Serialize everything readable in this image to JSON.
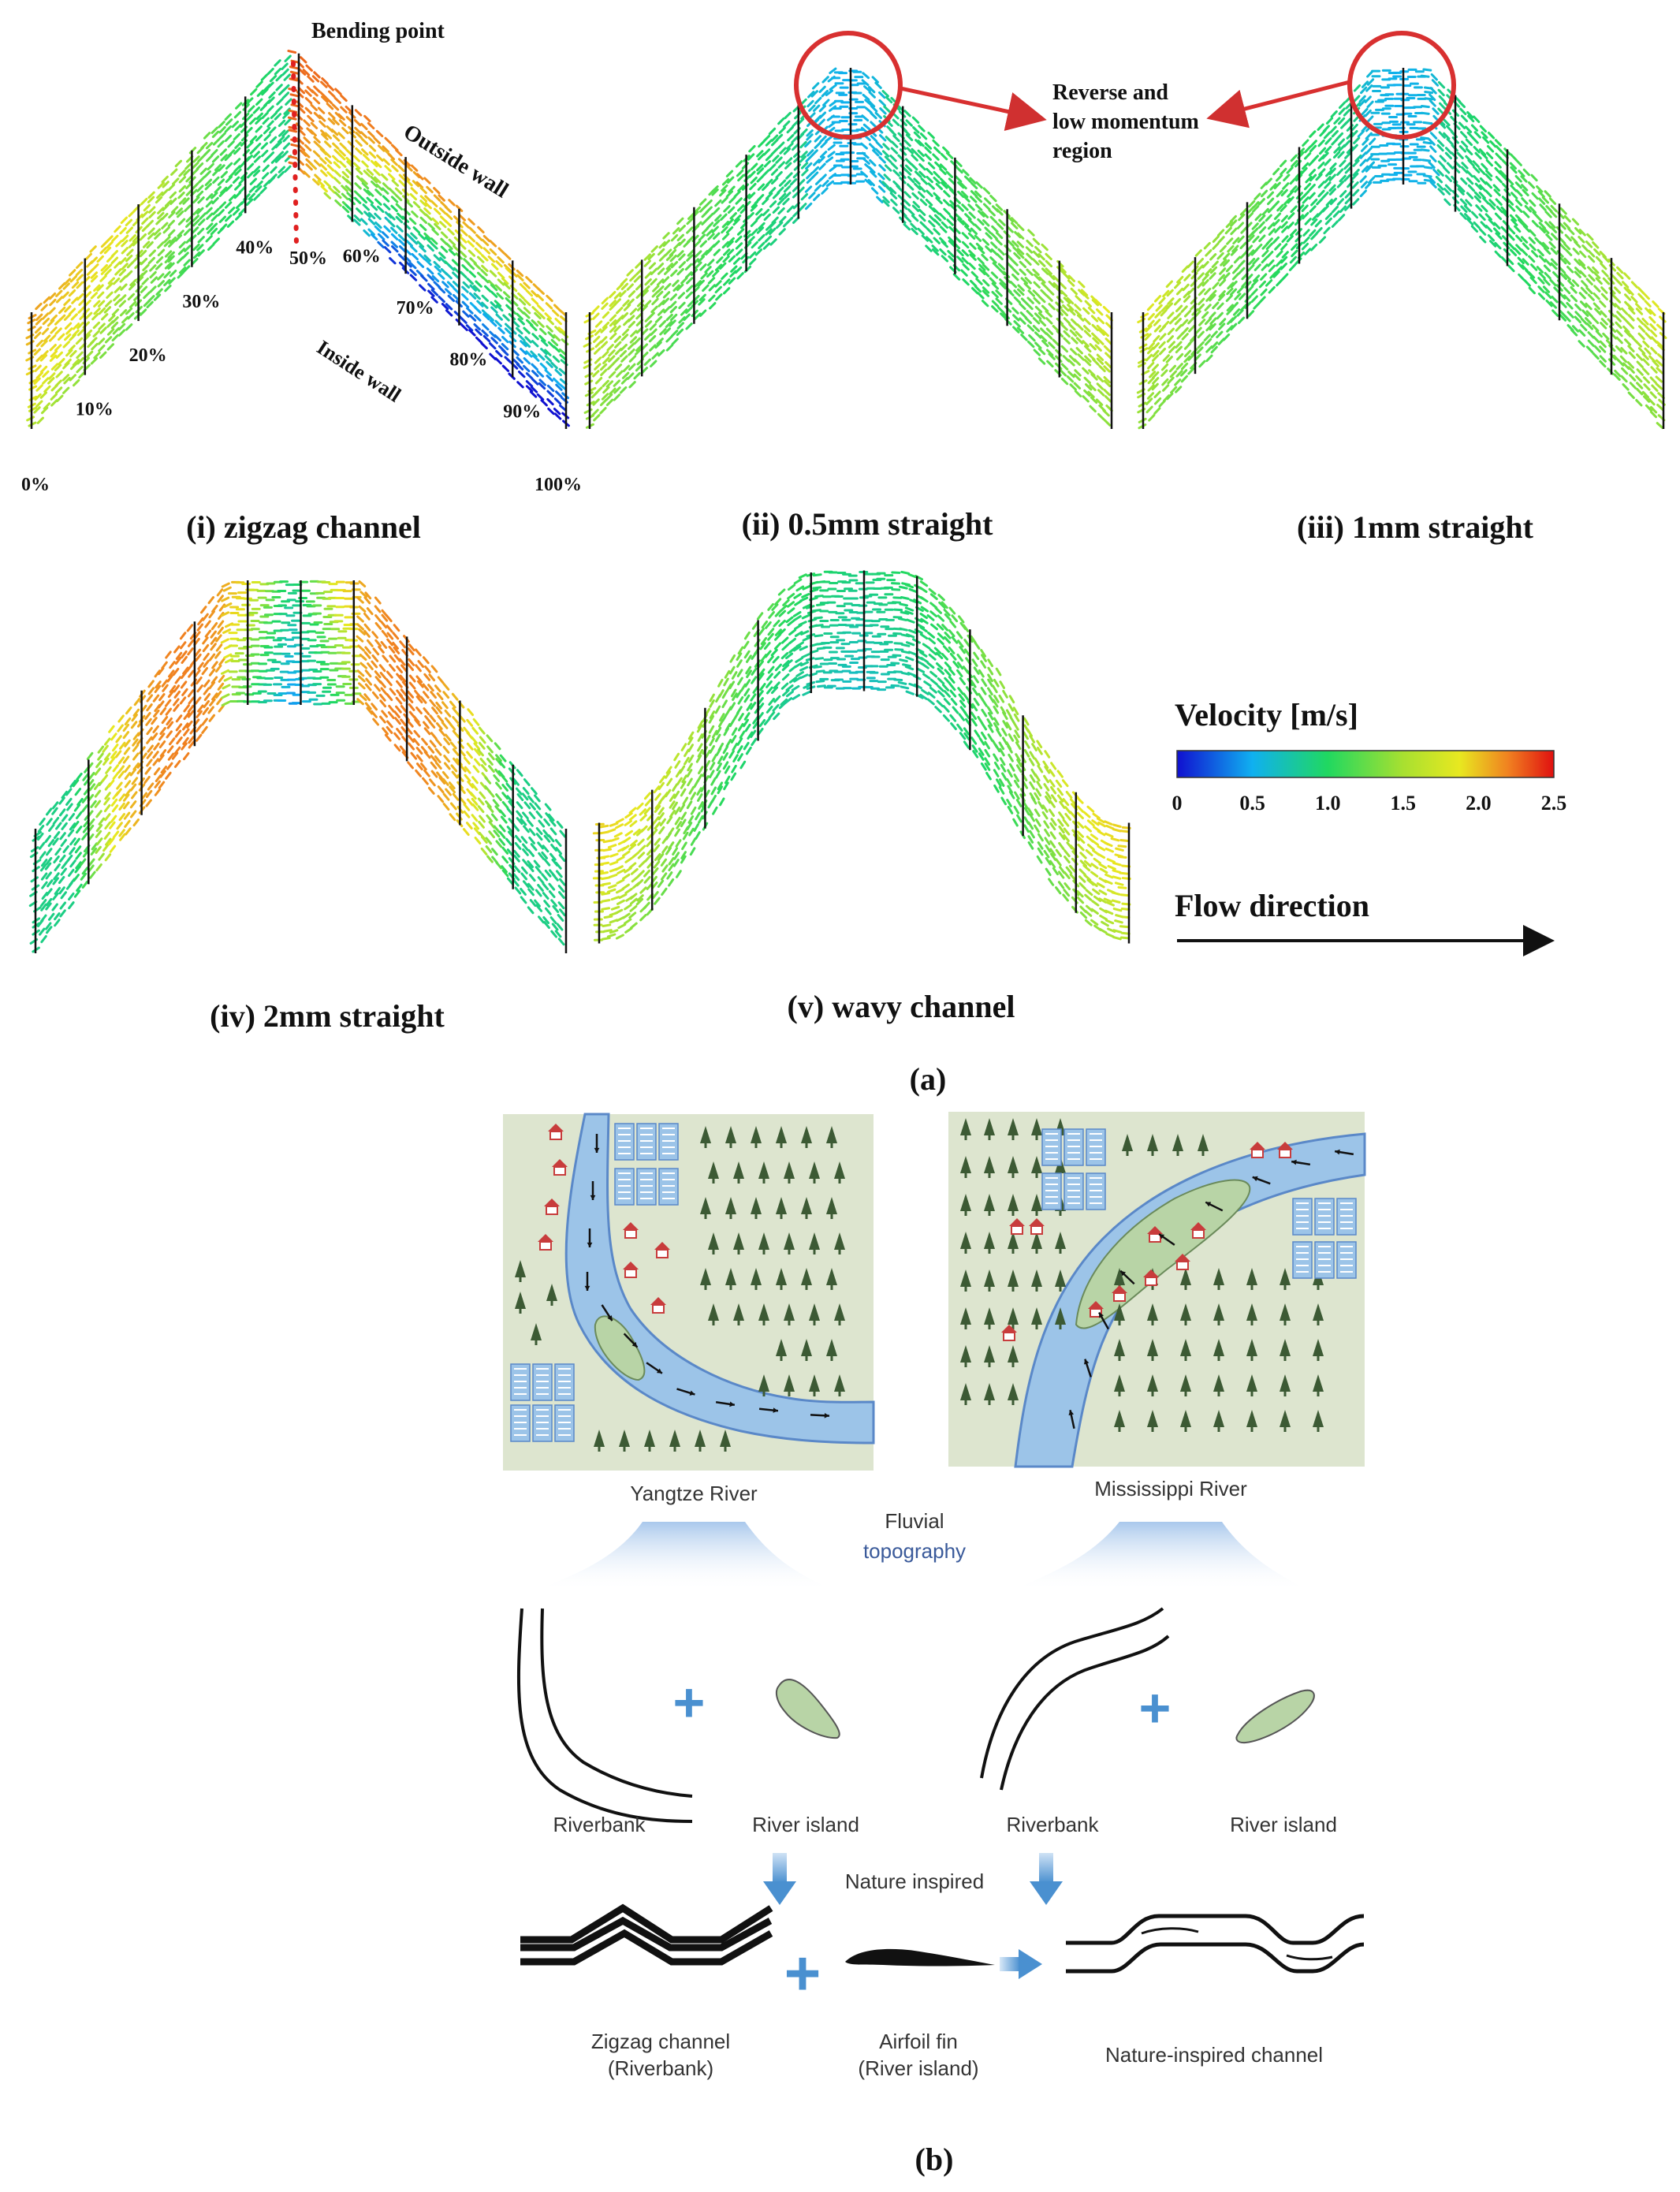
{
  "part_a": {
    "panels": [
      {
        "id": "zigzag",
        "caption": "(i)  zigzag channel"
      },
      {
        "id": "s05",
        "caption": "(ii)  0.5mm straight"
      },
      {
        "id": "s1",
        "caption": "(iii)  1mm straight"
      },
      {
        "id": "s2",
        "caption": "(iv)  2mm straight"
      },
      {
        "id": "wavy",
        "caption": "(v)  wavy channel"
      }
    ],
    "annotations": {
      "bending_point": "Bending point",
      "outside_wall": "Outside wall",
      "inside_wall": "Inside wall",
      "reverse_region": "Reverse and low momentum region"
    },
    "percent_labels": [
      "0%",
      "10%",
      "20%",
      "30%",
      "40%",
      "50%",
      "60%",
      "70%",
      "80%",
      "90%",
      "100%"
    ],
    "colorbar": {
      "title": "Velocity [m/s]",
      "ticks": [
        "0",
        "0.5",
        "1.0",
        "1.5",
        "2.0",
        "2.5"
      ],
      "min": 0,
      "max": 2.5,
      "colors": [
        "#1010d0",
        "#10b0f0",
        "#20d860",
        "#e8e820",
        "#f08020",
        "#e01010"
      ]
    },
    "flow_direction": "Flow direction",
    "part_label": "(a)"
  },
  "part_b": {
    "rivers": [
      {
        "name": "Yangtze River"
      },
      {
        "name": "Mississippi River"
      }
    ],
    "fluvial": [
      "Fluvial",
      "topography"
    ],
    "riverbank_label": "Riverbank",
    "island_label": "River island",
    "nature_inspired": "Nature inspired",
    "zigzag_label": [
      "Zigzag channel",
      "(Riverbank)"
    ],
    "airfoil_label": [
      "Airfoil fin",
      "(River island)"
    ],
    "result_label": "Nature-inspired channel",
    "part_label": "(b)",
    "colors": {
      "land": "#dde5cf",
      "water": "#9cc4e8",
      "island": "#b8d4a6",
      "tree": "#3c5a34",
      "house": "#c83c3c",
      "accent": "#4a90d0"
    }
  }
}
